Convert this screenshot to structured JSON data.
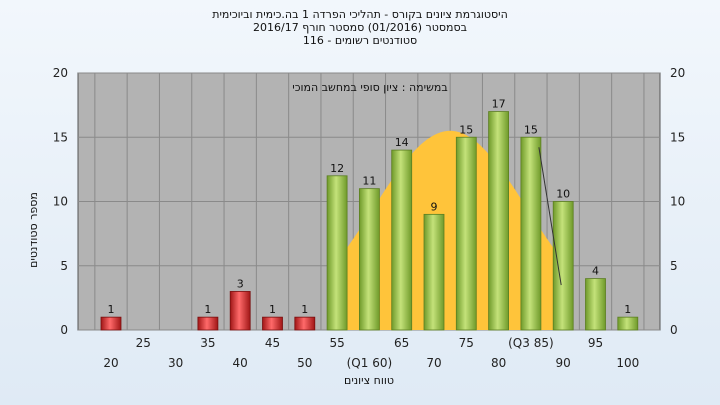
{
  "titles": {
    "line1": "היסטוגרמת ציונים בקורס - תהליכי הפרדה 1 בה.כימית וביוכימית",
    "line2": "בסמסטר  (01/2016)  סמסטר חורף  2016/17",
    "line3": "סטודנטים רשומים - 116"
  },
  "chart_data": {
    "type": "bar",
    "subtitle": "במשימה : ציון סופי במחשב המוכי",
    "ylabel": "מספר סטודנטים",
    "xlabel": "טווח ציונים",
    "ylim": [
      0,
      20
    ],
    "yticks": [
      0,
      5,
      10,
      15,
      20
    ],
    "grid": true,
    "right_axis": true,
    "categories": [
      20,
      25,
      30,
      35,
      40,
      45,
      50,
      55,
      60,
      65,
      70,
      75,
      80,
      85,
      90,
      95,
      100
    ],
    "x_tick_labels": [
      "20",
      "25",
      "30",
      "35",
      "40",
      "45",
      "50",
      "55",
      "(Q1 60)",
      "65",
      "70",
      "75",
      "80",
      "(Q3 85)",
      "90",
      "95",
      "100"
    ],
    "series": [
      {
        "values": [
          1,
          null,
          null,
          1,
          3,
          1,
          1,
          12,
          11,
          14,
          9,
          15,
          17,
          15,
          10,
          4,
          1
        ],
        "labels": [
          "1",
          "",
          "",
          "1",
          "3",
          "1",
          "1",
          "12",
          "11",
          "14",
          "9",
          "15",
          "17",
          "15",
          "10",
          "4",
          "1"
        ]
      }
    ],
    "colors": {
      "fail": "#d42a2a",
      "pass": "#9cc24a",
      "curve": "#ffc43a"
    },
    "fail_threshold": 55
  }
}
